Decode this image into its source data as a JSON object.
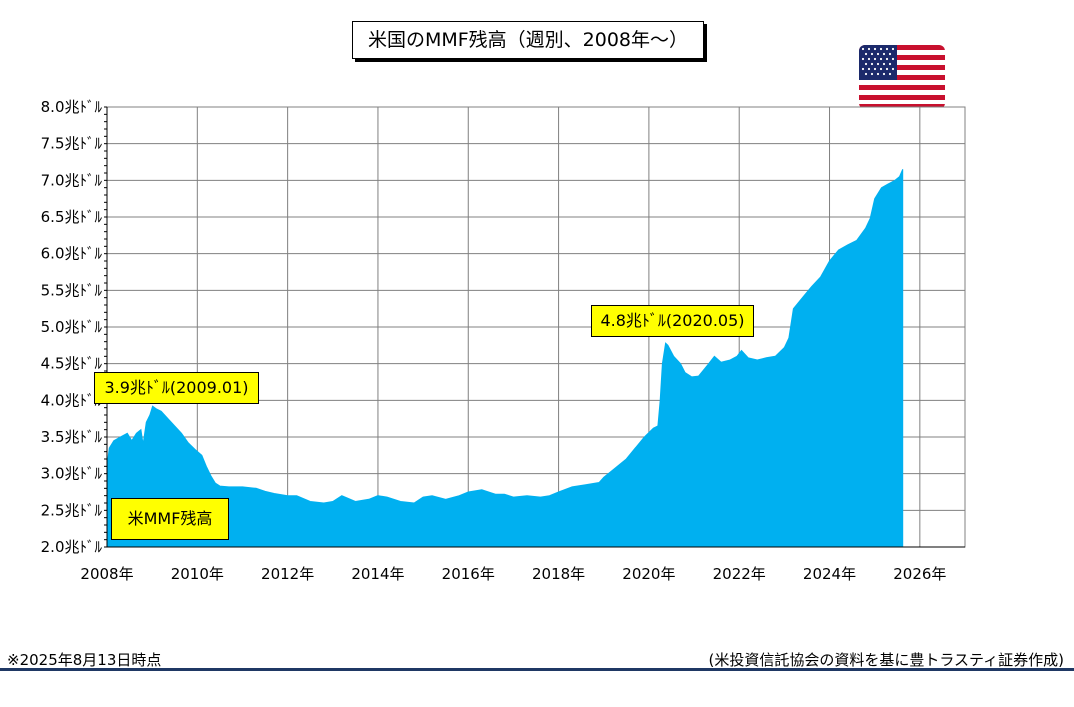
{
  "title": "米国のMMF残高（週別、2008年〜）",
  "footnote": "※2025年8月13日時点",
  "source": "(米投資信託協会の資料を基に豊トラスティ証券作成)",
  "colors": {
    "area": "#00b0f0",
    "callout": "#ffff00",
    "footer_rule": "#1f3864"
  },
  "flag_icon": "us-flag-icon",
  "chart_data": {
    "type": "area",
    "title": "米国のMMF残高（週別、2008年〜）",
    "series": [
      {
        "name": "米MMF残高",
        "points": [
          [
            2008.0,
            3.1
          ],
          [
            2008.05,
            3.35
          ],
          [
            2008.15,
            3.45
          ],
          [
            2008.3,
            3.5
          ],
          [
            2008.45,
            3.55
          ],
          [
            2008.55,
            3.45
          ],
          [
            2008.65,
            3.55
          ],
          [
            2008.75,
            3.6
          ],
          [
            2008.8,
            3.4
          ],
          [
            2008.87,
            3.7
          ],
          [
            2008.95,
            3.8
          ],
          [
            2009.01,
            3.92
          ],
          [
            2009.1,
            3.88
          ],
          [
            2009.2,
            3.85
          ],
          [
            2009.35,
            3.75
          ],
          [
            2009.5,
            3.65
          ],
          [
            2009.65,
            3.55
          ],
          [
            2009.8,
            3.42
          ],
          [
            2009.95,
            3.33
          ],
          [
            2010.1,
            3.25
          ],
          [
            2010.2,
            3.1
          ],
          [
            2010.3,
            2.97
          ],
          [
            2010.4,
            2.87
          ],
          [
            2010.5,
            2.83
          ],
          [
            2010.7,
            2.82
          ],
          [
            2011.0,
            2.82
          ],
          [
            2011.3,
            2.8
          ],
          [
            2011.5,
            2.76
          ],
          [
            2011.7,
            2.73
          ],
          [
            2012.0,
            2.7
          ],
          [
            2012.2,
            2.7
          ],
          [
            2012.5,
            2.62
          ],
          [
            2012.8,
            2.6
          ],
          [
            2013.0,
            2.62
          ],
          [
            2013.2,
            2.7
          ],
          [
            2013.5,
            2.62
          ],
          [
            2013.8,
            2.65
          ],
          [
            2014.0,
            2.7
          ],
          [
            2014.2,
            2.68
          ],
          [
            2014.5,
            2.62
          ],
          [
            2014.8,
            2.6
          ],
          [
            2015.0,
            2.68
          ],
          [
            2015.2,
            2.7
          ],
          [
            2015.5,
            2.65
          ],
          [
            2015.8,
            2.7
          ],
          [
            2016.0,
            2.75
          ],
          [
            2016.3,
            2.78
          ],
          [
            2016.6,
            2.72
          ],
          [
            2016.8,
            2.72
          ],
          [
            2017.0,
            2.68
          ],
          [
            2017.3,
            2.7
          ],
          [
            2017.6,
            2.68
          ],
          [
            2017.8,
            2.7
          ],
          [
            2018.0,
            2.75
          ],
          [
            2018.3,
            2.82
          ],
          [
            2018.6,
            2.85
          ],
          [
            2018.9,
            2.88
          ],
          [
            2019.0,
            2.95
          ],
          [
            2019.2,
            3.05
          ],
          [
            2019.5,
            3.2
          ],
          [
            2019.7,
            3.35
          ],
          [
            2019.9,
            3.5
          ],
          [
            2020.1,
            3.62
          ],
          [
            2020.2,
            3.65
          ],
          [
            2020.25,
            4.0
          ],
          [
            2020.3,
            4.5
          ],
          [
            2020.37,
            4.78
          ],
          [
            2020.42,
            4.75
          ],
          [
            2020.55,
            4.6
          ],
          [
            2020.7,
            4.5
          ],
          [
            2020.8,
            4.38
          ],
          [
            2020.95,
            4.32
          ],
          [
            2021.1,
            4.33
          ],
          [
            2021.3,
            4.48
          ],
          [
            2021.45,
            4.6
          ],
          [
            2021.6,
            4.52
          ],
          [
            2021.8,
            4.55
          ],
          [
            2021.95,
            4.6
          ],
          [
            2022.05,
            4.68
          ],
          [
            2022.2,
            4.58
          ],
          [
            2022.4,
            4.55
          ],
          [
            2022.6,
            4.58
          ],
          [
            2022.8,
            4.6
          ],
          [
            2023.0,
            4.72
          ],
          [
            2023.1,
            4.85
          ],
          [
            2023.2,
            5.25
          ],
          [
            2023.4,
            5.4
          ],
          [
            2023.6,
            5.55
          ],
          [
            2023.8,
            5.68
          ],
          [
            2024.0,
            5.9
          ],
          [
            2024.2,
            6.05
          ],
          [
            2024.4,
            6.12
          ],
          [
            2024.6,
            6.18
          ],
          [
            2024.8,
            6.35
          ],
          [
            2024.9,
            6.48
          ],
          [
            2025.0,
            6.75
          ],
          [
            2025.15,
            6.9
          ],
          [
            2025.3,
            6.95
          ],
          [
            2025.45,
            7.0
          ],
          [
            2025.55,
            7.05
          ],
          [
            2025.62,
            7.15
          ]
        ]
      }
    ],
    "x_ticks": [
      "2008年",
      "2010年",
      "2012年",
      "2014年",
      "2016年",
      "2018年",
      "2020年",
      "2022年",
      "2024年",
      "2026年"
    ],
    "y_ticks": [
      "2.0兆ﾄﾞﾙ",
      "2.5兆ﾄﾞﾙ",
      "3.0兆ﾄﾞﾙ",
      "3.5兆ﾄﾞﾙ",
      "4.0兆ﾄﾞﾙ",
      "4.5兆ﾄﾞﾙ",
      "5.0兆ﾄﾞﾙ",
      "5.5兆ﾄﾞﾙ",
      "6.0兆ﾄﾞﾙ",
      "6.5兆ﾄﾞﾙ",
      "7.0兆ﾄﾞﾙ",
      "7.5兆ﾄﾞﾙ",
      "8.0兆ﾄﾞﾙ"
    ],
    "xlim": [
      2008,
      2027
    ],
    "ylim": [
      2.0,
      8.0
    ],
    "grid": true,
    "annotations": [
      {
        "label": "3.9兆ﾄﾞﾙ(2009.01)",
        "x": 2009.01,
        "y": 3.9
      },
      {
        "label": "4.8兆ﾄﾞﾙ(2020.05)",
        "x": 2020.37,
        "y": 4.8
      }
    ],
    "series_label": "米MMF残高"
  }
}
